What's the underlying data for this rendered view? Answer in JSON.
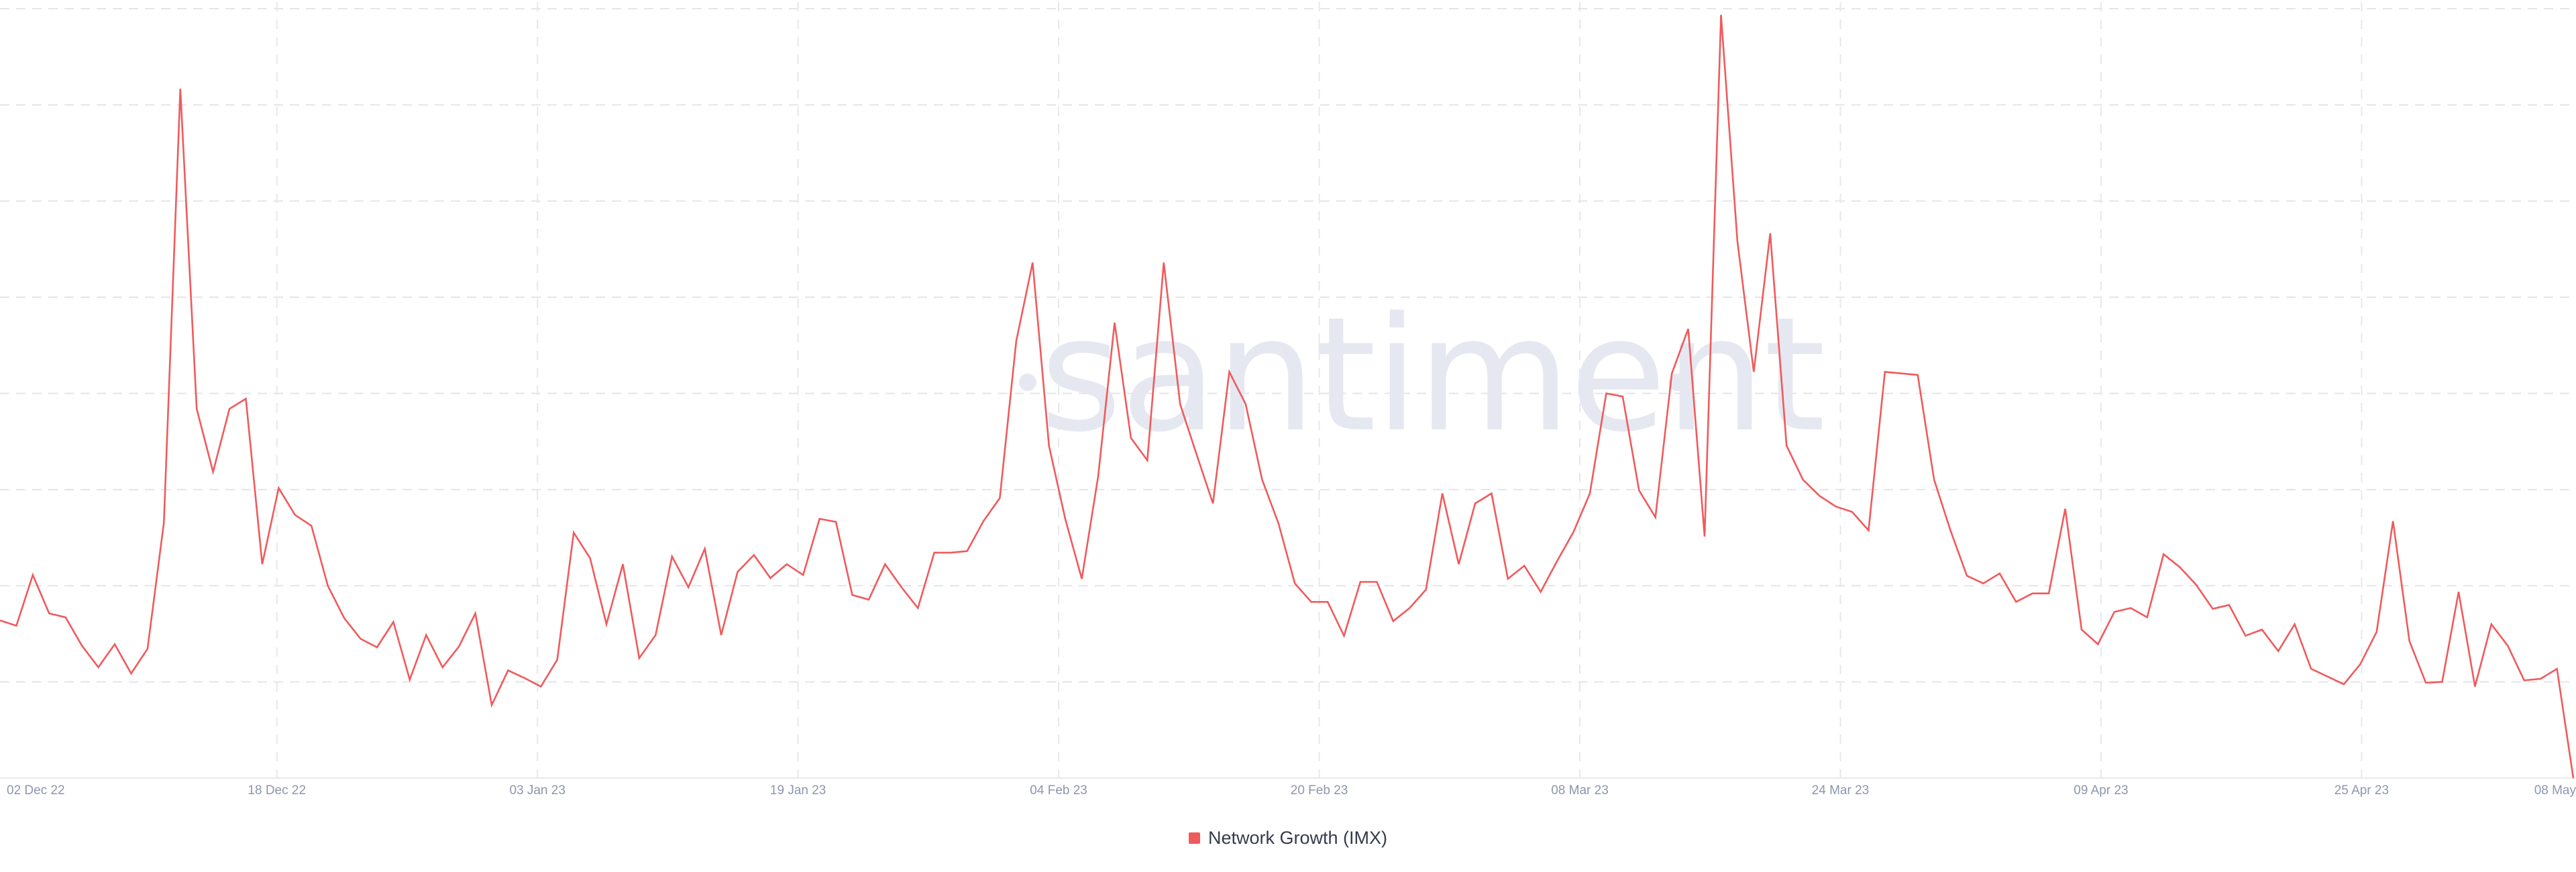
{
  "watermark": "santiment",
  "colors": {
    "series": "#f05a5c",
    "background": "#ffffff",
    "grid": "#e3e5ea",
    "tick_text": "#8d96ad",
    "legend_text": "#353b4b",
    "watermark": "#e6e8f1"
  },
  "legend": {
    "label": "Network Growth (IMX)",
    "position": "bottom-center"
  },
  "chart_data": {
    "type": "line",
    "title": "",
    "xlabel": "",
    "ylabel": "",
    "grid": true,
    "ylim": [
      0,
      100
    ],
    "x_ticks": [
      "02 Dec 22",
      "18 Dec 22",
      "03 Jan 23",
      "19 Jan 23",
      "04 Feb 23",
      "20 Feb 23",
      "08 Mar 23",
      "24 Mar 23",
      "09 Apr 23",
      "25 Apr 23",
      "08 May"
    ],
    "x_start": "2022-12-01",
    "x_end": "2023-05-08",
    "series": [
      {
        "name": "Network Growth (IMX)",
        "values": [
          20.5,
          19.8,
          26.4,
          21.4,
          20.9,
          17.2,
          14.4,
          17.4,
          13.6,
          16.8,
          33.2,
          89.6,
          48.0,
          39.8,
          48.0,
          49.3,
          27.8,
          37.7,
          34.2,
          32.8,
          25.0,
          20.8,
          18.1,
          17.0,
          20.3,
          12.8,
          18.6,
          14.4,
          17.1,
          21.4,
          9.5,
          14.0,
          13.0,
          11.9,
          15.4,
          31.9,
          28.6,
          20.0,
          27.8,
          15.6,
          18.6,
          28.8,
          24.8,
          29.8,
          18.6,
          26.8,
          29.0,
          26.0,
          27.8,
          26.4,
          33.7,
          33.3,
          23.8,
          23.2,
          27.8,
          24.8,
          22.1,
          29.3,
          29.3,
          29.5,
          33.4,
          36.4,
          56.8,
          67.0,
          43.2,
          33.6,
          25.9,
          39.2,
          59.2,
          44.2,
          41.3,
          67.0,
          48.6,
          42.1,
          35.7,
          52.8,
          48.6,
          38.8,
          33.1,
          25.3,
          22.9,
          22.9,
          18.5,
          25.5,
          25.5,
          20.4,
          22.1,
          24.5,
          37.0,
          27.8,
          35.7,
          37.0,
          25.9,
          27.6,
          24.2,
          28.2,
          32.0,
          37.0,
          50.0,
          49.6,
          37.4,
          33.9,
          52.6,
          58.4,
          31.4,
          99.2,
          69.8,
          52.8,
          70.8,
          43.2,
          38.8,
          36.7,
          35.3,
          34.6,
          32.2,
          52.8,
          52.6,
          52.4,
          38.8,
          32.2,
          26.3,
          25.3,
          26.6,
          22.9,
          24.0,
          24.0,
          35.0,
          19.3,
          17.4,
          21.6,
          22.1,
          20.9,
          29.1,
          27.4,
          25.1,
          22.0,
          22.5,
          18.5,
          19.3,
          16.5,
          20.0,
          14.2,
          13.2,
          12.2,
          14.8,
          19.0,
          33.4,
          17.8,
          12.4,
          12.5,
          24.2,
          11.9,
          20.0,
          17.2,
          12.7,
          12.9,
          14.2,
          0.0
        ]
      }
    ]
  }
}
